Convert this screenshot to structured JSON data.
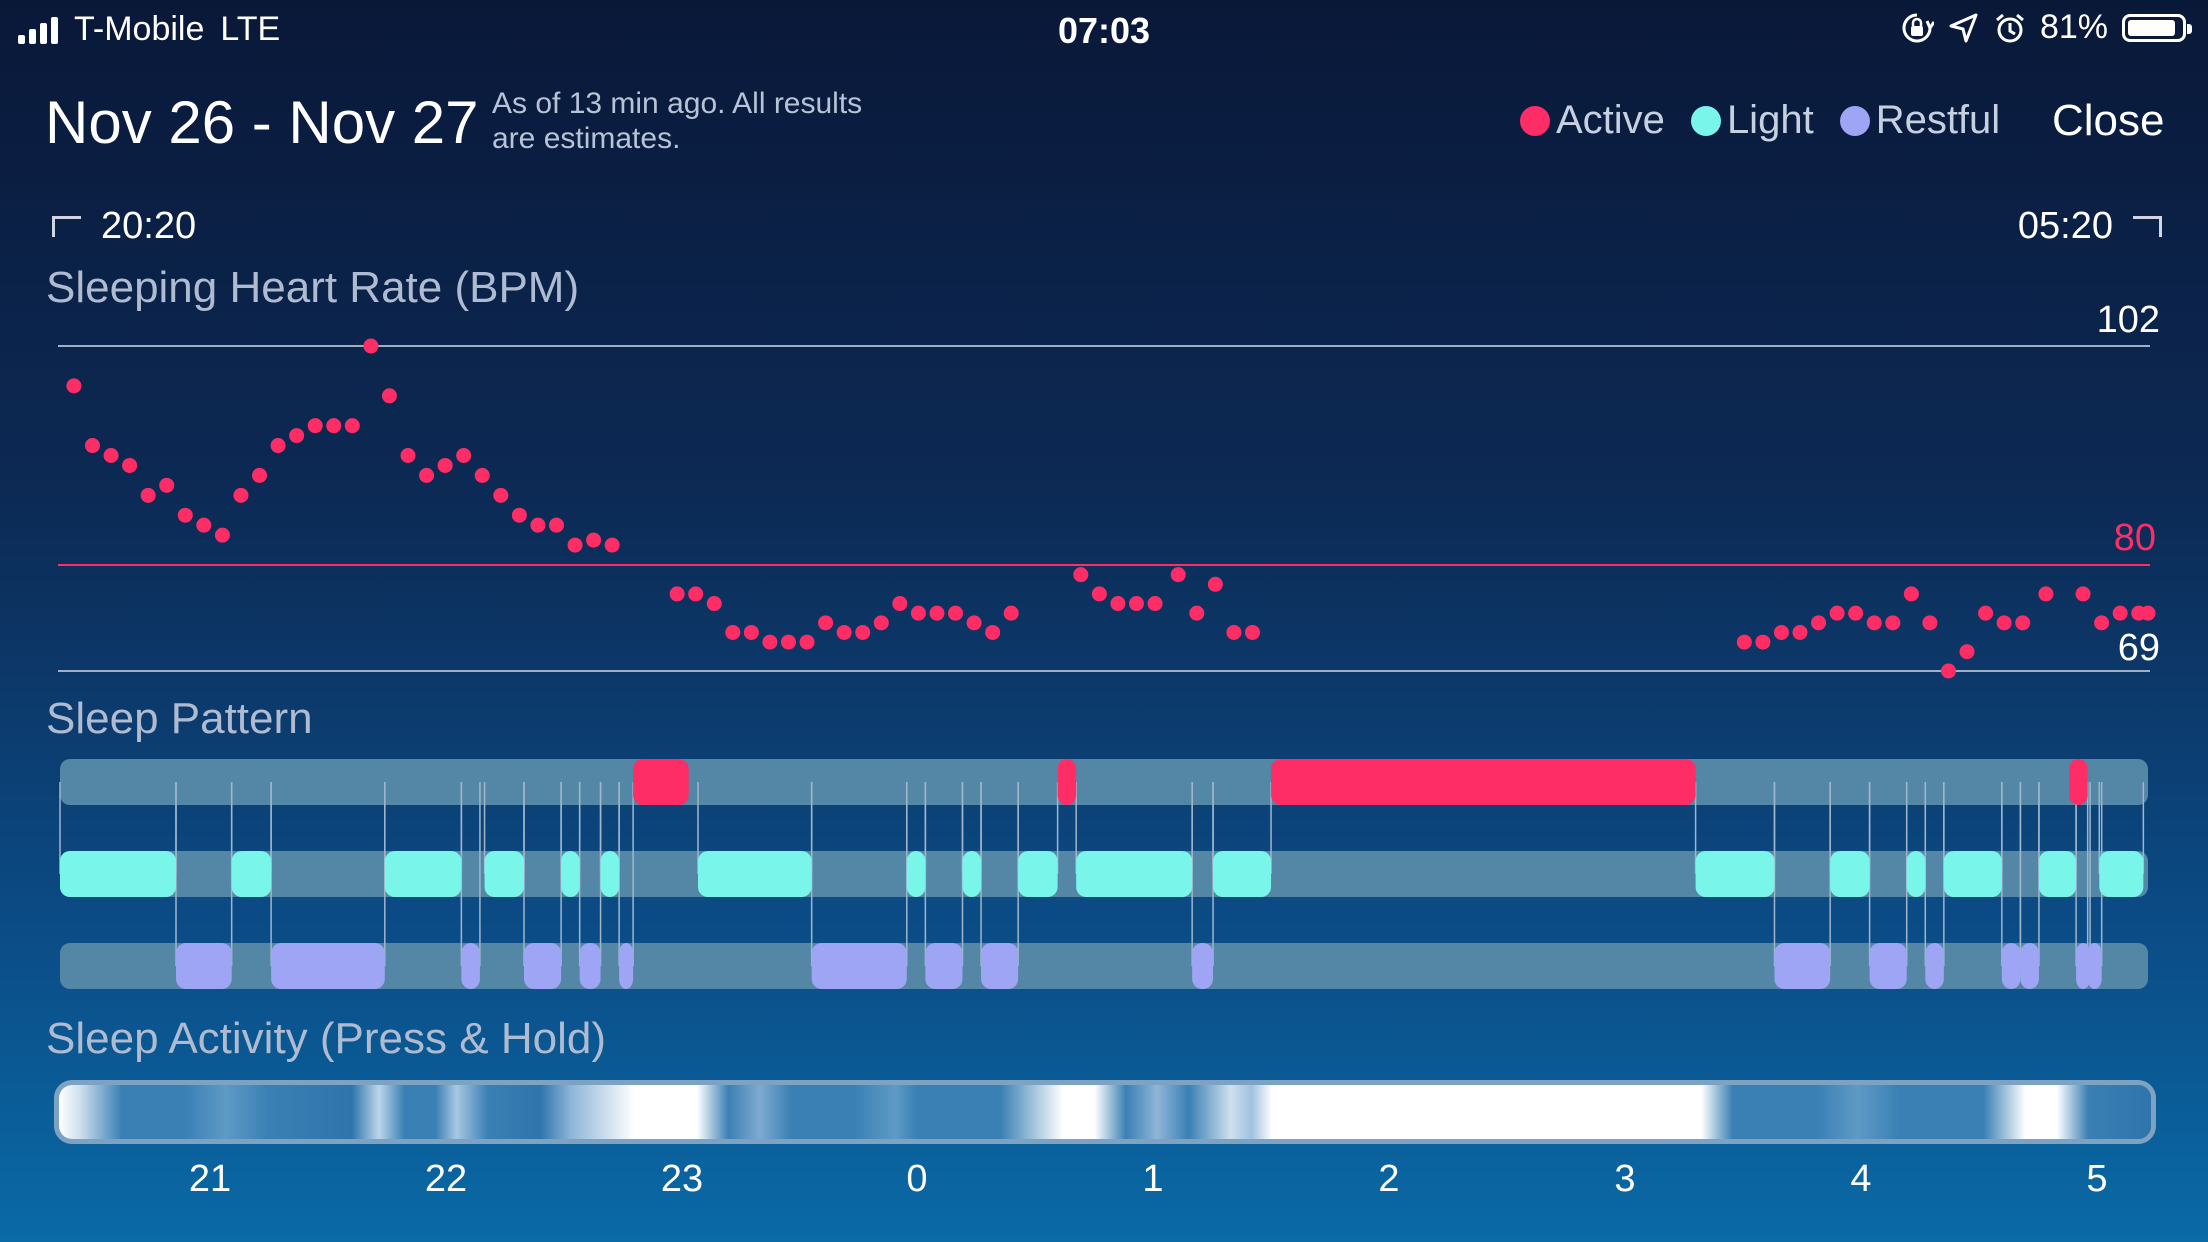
{
  "status_bar": {
    "carrier": "T-Mobile",
    "network": "LTE",
    "time": "07:03",
    "battery": "81%",
    "icons": [
      "orientation-lock-icon",
      "location-icon",
      "alarm-icon"
    ]
  },
  "header": {
    "title": "Nov 26 - Nov 27",
    "subtitle": "As of 13 min ago. All results are estimates.",
    "close_label": "Close"
  },
  "legend": [
    {
      "label": "Active",
      "color": "#ff2d66"
    },
    {
      "label": "Light",
      "color": "#7af5ea"
    },
    {
      "label": "Restful",
      "color": "#9ea5f5"
    }
  ],
  "range": {
    "start": "20:20",
    "end": "05:20"
  },
  "heart_rate": {
    "label": "Sleeping Heart Rate (BPM)",
    "max_label": "102",
    "avg_label": "80",
    "min_label": "69"
  },
  "sleep_pattern": {
    "label": "Sleep Pattern"
  },
  "sleep_activity": {
    "label": "Sleep Activity (Press & Hold)"
  },
  "x_ticks": [
    "21",
    "22",
    "23",
    "0",
    "1",
    "2",
    "3",
    "4",
    "5"
  ],
  "chart_data": {
    "type": "scatter",
    "title": "Sleeping Heart Rate (BPM)",
    "x_unit": "hours since 20:20",
    "x_range": [
      0,
      9
    ],
    "y_range": [
      69,
      102
    ],
    "reference_lines": [
      102,
      80,
      69
    ],
    "points": [
      [
        0.06,
        98
      ],
      [
        0.14,
        92
      ],
      [
        0.22,
        91
      ],
      [
        0.3,
        90
      ],
      [
        0.38,
        87
      ],
      [
        0.46,
        88
      ],
      [
        0.54,
        85
      ],
      [
        0.62,
        84
      ],
      [
        0.7,
        83
      ],
      [
        0.78,
        87
      ],
      [
        0.86,
        89
      ],
      [
        0.94,
        92
      ],
      [
        1.02,
        93
      ],
      [
        1.1,
        94
      ],
      [
        1.18,
        94
      ],
      [
        1.26,
        94
      ],
      [
        1.34,
        102
      ],
      [
        1.42,
        97
      ],
      [
        1.5,
        91
      ],
      [
        1.58,
        89
      ],
      [
        1.66,
        90
      ],
      [
        1.74,
        91
      ],
      [
        1.82,
        89
      ],
      [
        1.9,
        87
      ],
      [
        1.98,
        85
      ],
      [
        2.06,
        84
      ],
      [
        2.14,
        84
      ],
      [
        2.22,
        82
      ],
      [
        2.3,
        82.5
      ],
      [
        2.38,
        82
      ],
      [
        2.66,
        77
      ],
      [
        2.74,
        77
      ],
      [
        2.82,
        76
      ],
      [
        2.9,
        73
      ],
      [
        2.98,
        73
      ],
      [
        3.06,
        72
      ],
      [
        3.14,
        72
      ],
      [
        3.22,
        72
      ],
      [
        3.3,
        74
      ],
      [
        3.38,
        73
      ],
      [
        3.46,
        73
      ],
      [
        3.54,
        74
      ],
      [
        3.62,
        76
      ],
      [
        3.7,
        75
      ],
      [
        3.78,
        75
      ],
      [
        3.86,
        75
      ],
      [
        3.94,
        74
      ],
      [
        4.02,
        73
      ],
      [
        4.1,
        75
      ],
      [
        4.4,
        79
      ],
      [
        4.48,
        77
      ],
      [
        4.56,
        76
      ],
      [
        4.64,
        76
      ],
      [
        4.72,
        76
      ],
      [
        4.82,
        79
      ],
      [
        4.9,
        75
      ],
      [
        4.98,
        78
      ],
      [
        5.06,
        73
      ],
      [
        5.14,
        73
      ],
      [
        7.26,
        72
      ],
      [
        7.34,
        72
      ],
      [
        7.42,
        73
      ],
      [
        7.5,
        73
      ],
      [
        7.58,
        74
      ],
      [
        7.66,
        75
      ],
      [
        7.74,
        75
      ],
      [
        7.82,
        74
      ],
      [
        7.9,
        74
      ],
      [
        7.98,
        77
      ],
      [
        8.06,
        74
      ],
      [
        8.14,
        69
      ],
      [
        8.22,
        71
      ],
      [
        8.3,
        75
      ],
      [
        8.38,
        74
      ],
      [
        8.46,
        74
      ],
      [
        8.56,
        77
      ],
      [
        8.72,
        77
      ],
      [
        8.8,
        74
      ],
      [
        8.88,
        75
      ],
      [
        8.96,
        75
      ],
      [
        9.0,
        75
      ]
    ],
    "sleep_pattern": {
      "active": [
        [
          2.47,
          2.71
        ],
        [
          4.3,
          4.38
        ],
        [
          5.22,
          7.05
        ],
        [
          8.66,
          8.74
        ]
      ],
      "light": [
        [
          0,
          0.5
        ],
        [
          0.74,
          0.91
        ],
        [
          1.4,
          1.73
        ],
        [
          1.83,
          2.0
        ],
        [
          2.16,
          2.24
        ],
        [
          2.33,
          2.41
        ],
        [
          2.75,
          3.24
        ],
        [
          3.65,
          3.73
        ],
        [
          3.89,
          3.97
        ],
        [
          4.13,
          4.3
        ],
        [
          4.38,
          4.88
        ],
        [
          4.97,
          5.22
        ],
        [
          7.05,
          7.39
        ],
        [
          7.63,
          7.8
        ],
        [
          7.96,
          8.04
        ],
        [
          8.12,
          8.37
        ],
        [
          8.53,
          8.69
        ],
        [
          8.79,
          8.98
        ]
      ],
      "restful": [
        [
          0.5,
          0.74
        ],
        [
          0.91,
          1.4
        ],
        [
          1.73,
          1.81
        ],
        [
          2.0,
          2.16
        ],
        [
          2.24,
          2.33
        ],
        [
          2.41,
          2.47
        ],
        [
          3.24,
          3.65
        ],
        [
          3.73,
          3.89
        ],
        [
          3.97,
          4.13
        ],
        [
          4.88,
          4.97
        ],
        [
          7.39,
          7.63
        ],
        [
          7.8,
          7.96
        ],
        [
          8.04,
          8.12
        ],
        [
          8.37,
          8.45
        ],
        [
          8.45,
          8.53
        ],
        [
          8.69,
          8.74
        ],
        [
          8.74,
          8.79
        ]
      ]
    }
  }
}
